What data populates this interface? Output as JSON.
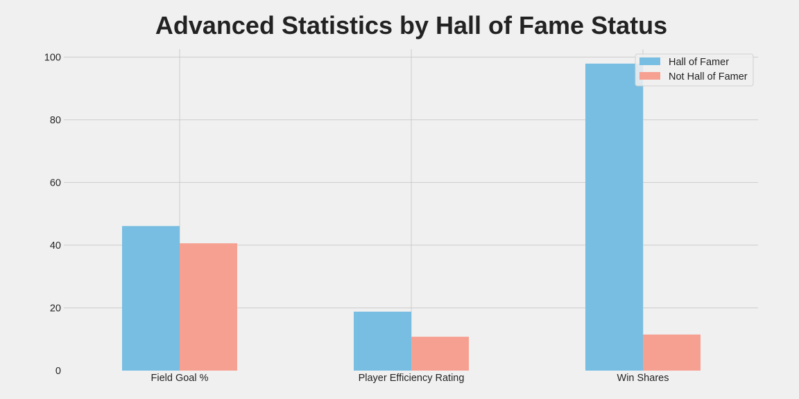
{
  "chart_data": {
    "type": "bar",
    "title": "Advanced Statistics by Hall of Fame Status",
    "xlabel": "",
    "ylabel": "",
    "categories": [
      "Field Goal %",
      "Player Efficiency Rating",
      "Win Shares"
    ],
    "series": [
      {
        "name": "Hall of Famer",
        "values": [
          46.1,
          18.8,
          97.9
        ],
        "color": "#77bee2"
      },
      {
        "name": "Not Hall of Famer",
        "values": [
          40.6,
          10.8,
          11.5
        ],
        "color": "#f6a091"
      }
    ],
    "ylim": [
      0,
      102.5
    ],
    "yticks": [
      0,
      20,
      40,
      60,
      80,
      100
    ],
    "grid": true,
    "legend_position": "top-right",
    "background_color": "#f0f0f0",
    "grid_color": "#cbcbcb"
  }
}
